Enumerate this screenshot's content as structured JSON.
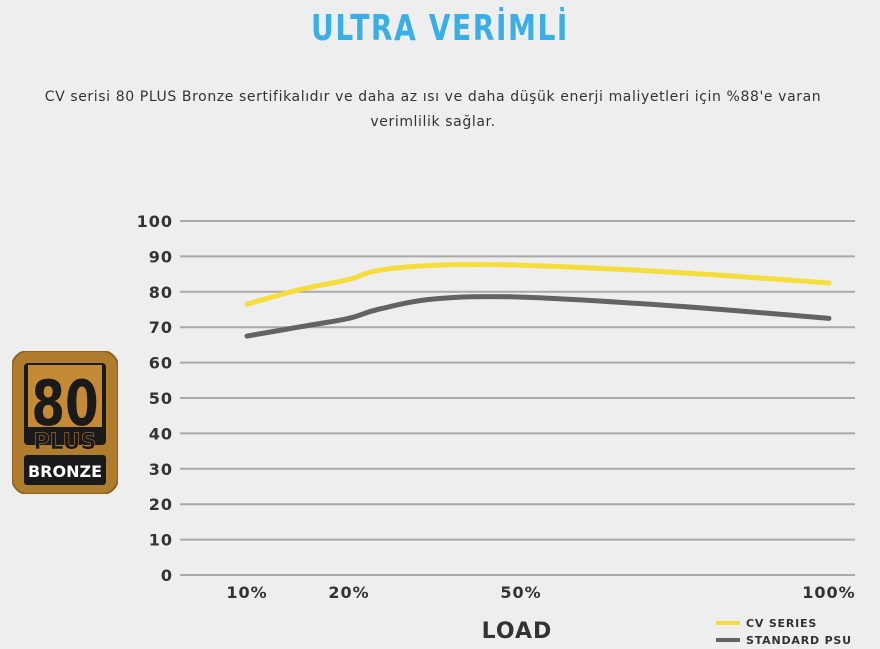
{
  "header": {
    "title": "ULTRA VERİMLİ",
    "subtitle_line1": "CV serisi 80 PLUS Bronze sertifikalıdır ve daha az ısı ve daha düşük enerji maliyetleri için %88'e varan",
    "subtitle_line2": "verimlilik sağlar."
  },
  "badge": {
    "number": "80",
    "plus": "PLUS",
    "tier": "BRONZE",
    "colors": {
      "outer": "#b07d2e",
      "inner": "#1a1a1a",
      "text_light": "#ffffff"
    }
  },
  "chart_data": {
    "type": "line",
    "categories": [
      "10%",
      "20%",
      "50%",
      "100%"
    ],
    "xlabel": "LOAD",
    "ylabel": "",
    "ylim": [
      0,
      100
    ],
    "yticks": [
      "0",
      "10",
      "20",
      "30",
      "40",
      "50",
      "60",
      "70",
      "80",
      "90",
      "100"
    ],
    "grid": true,
    "legend_position": "bottom-right",
    "series": [
      {
        "name": "CV SERIES",
        "color": "#f5dd3a",
        "points": [
          [
            10,
            76.5
          ],
          [
            15,
            80.5
          ],
          [
            20,
            83.5
          ],
          [
            25,
            86
          ],
          [
            35,
            87.5
          ],
          [
            50,
            87.5
          ],
          [
            75,
            85.5
          ],
          [
            100,
            82.5
          ]
        ]
      },
      {
        "name": "STANDARD PSU",
        "color": "#636363",
        "points": [
          [
            10,
            67.5
          ],
          [
            15,
            70
          ],
          [
            20,
            72.5
          ],
          [
            25,
            75
          ],
          [
            35,
            78
          ],
          [
            50,
            78.5
          ],
          [
            75,
            76
          ],
          [
            100,
            72.5
          ]
        ]
      }
    ]
  }
}
